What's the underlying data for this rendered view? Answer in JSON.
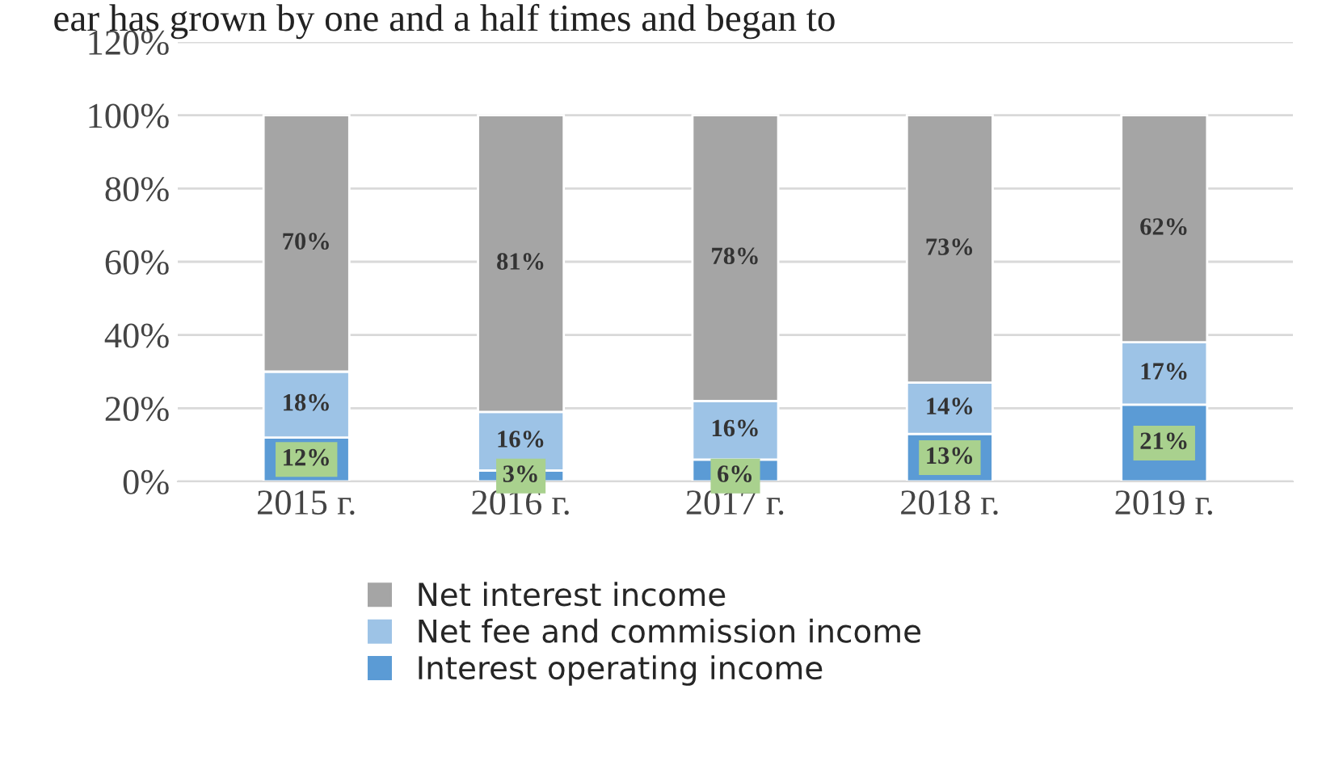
{
  "chart_data": {
    "type": "bar",
    "stacked": true,
    "categories": [
      "2015 г.",
      "2016 г.",
      "2017 г.",
      "2018 г.",
      "2019 г."
    ],
    "series": [
      {
        "name": "Interest operating income",
        "color": "#5b9bd5",
        "values": [
          12,
          3,
          6,
          13,
          21
        ],
        "value_labels": [
          "12%",
          "3%",
          "6%",
          "13%",
          "21%"
        ]
      },
      {
        "name": "Net fee and commission income",
        "color": "#9dc3e6",
        "values": [
          18,
          16,
          16,
          14,
          17
        ],
        "value_labels": [
          "18%",
          "16%",
          "16%",
          "14%",
          "17%"
        ]
      },
      {
        "name": "Net interest income",
        "color": "#a5a5a5",
        "values": [
          70,
          81,
          78,
          73,
          62
        ],
        "value_labels": [
          "70%",
          "81%",
          "78%",
          "73%",
          "62%"
        ]
      }
    ],
    "ylim": [
      0,
      120
    ],
    "yticks": [
      {
        "value": 0,
        "label": "0%"
      },
      {
        "value": 20,
        "label": "20%"
      },
      {
        "value": 40,
        "label": "40%"
      },
      {
        "value": 60,
        "label": "60%"
      },
      {
        "value": 80,
        "label": "80%"
      },
      {
        "value": 100,
        "label": "100%"
      },
      {
        "value": 120,
        "label": "120%"
      }
    ],
    "grid": "y",
    "legend": "bottom",
    "annotations": [
      "ear has grown by one and a half times and began to"
    ]
  }
}
